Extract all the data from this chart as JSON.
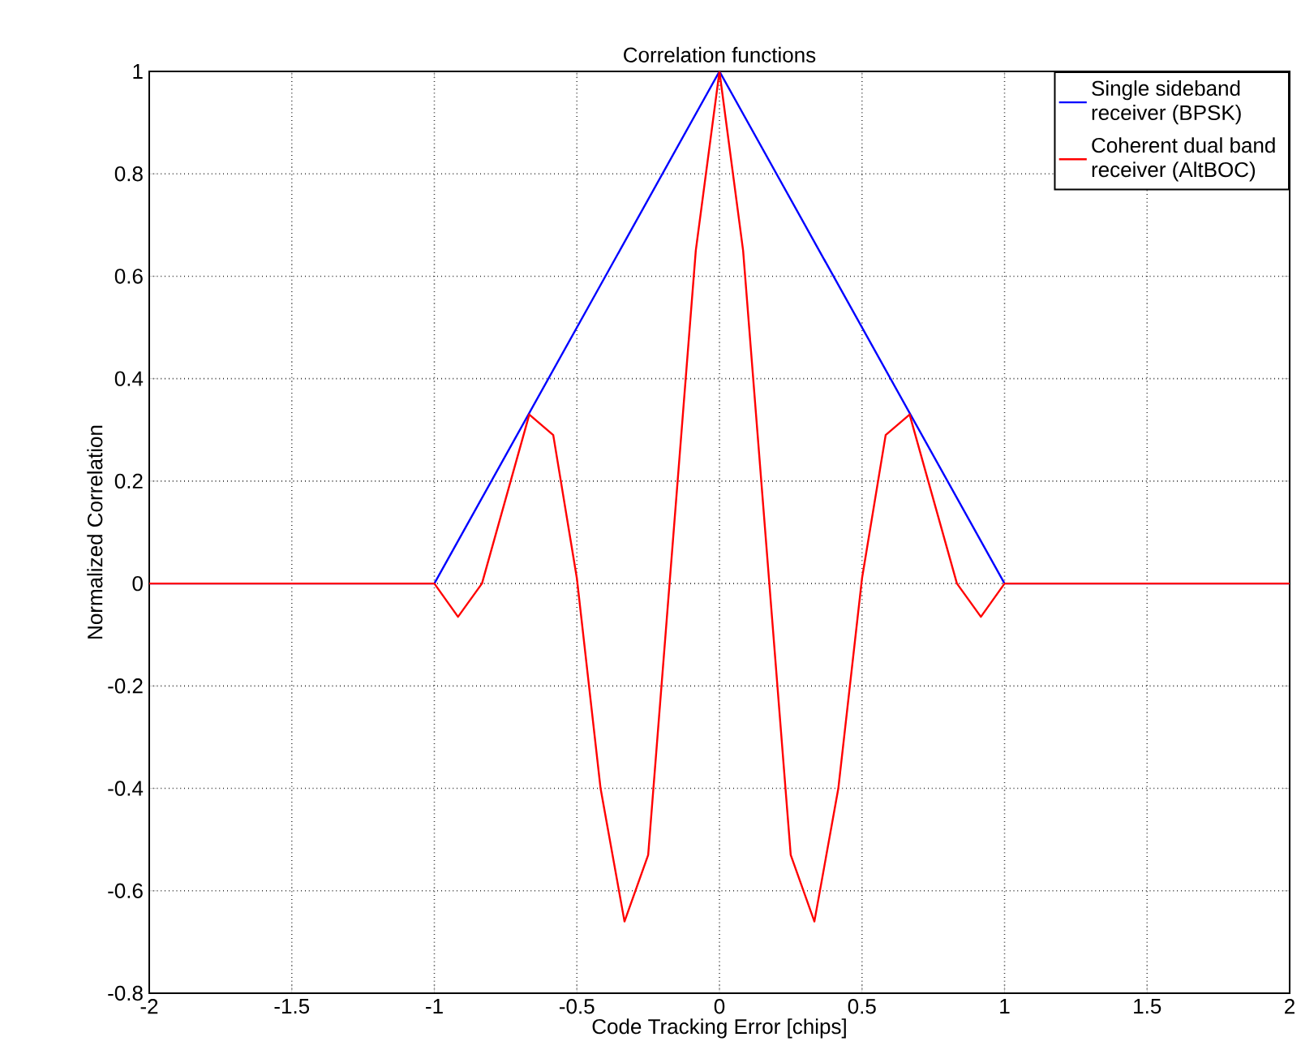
{
  "chart_data": {
    "type": "line",
    "title": "Correlation functions",
    "xlabel": "Code Tracking Error [chips]",
    "ylabel": "Normalized Correlation",
    "xlim": [
      -2,
      2
    ],
    "ylim": [
      -0.8,
      1
    ],
    "xticks": [
      -2,
      -1.5,
      -1,
      -0.5,
      0,
      0.5,
      1,
      1.5,
      2
    ],
    "yticks": [
      -0.8,
      -0.6,
      -0.4,
      -0.2,
      0,
      0.2,
      0.4,
      0.6,
      0.8,
      1
    ],
    "grid": true,
    "legend": "top right",
    "line_style": "solid",
    "series": [
      {
        "name": "Single sideband receiver (BPSK)",
        "color": "#0000ff",
        "x": [
          -2,
          -1,
          0,
          1,
          2
        ],
        "values": [
          0,
          0,
          1,
          0,
          0
        ]
      },
      {
        "name": "Coherent dual band receiver (AltBOC)",
        "color": "#ff0000",
        "x": [
          -2,
          -1.5,
          -1,
          -0.917,
          -0.833,
          -0.667,
          -0.583,
          -0.5,
          -0.417,
          -0.333,
          -0.25,
          -0.083,
          0,
          0.083,
          0.25,
          0.333,
          0.417,
          0.5,
          0.583,
          0.667,
          0.833,
          0.917,
          1,
          1.5,
          2
        ],
        "values": [
          0,
          0,
          0,
          -0.065,
          0,
          0.33,
          0.29,
          0.01,
          -0.4,
          -0.66,
          -0.53,
          0.65,
          1,
          0.65,
          -0.53,
          -0.66,
          -0.4,
          0.01,
          0.29,
          0.33,
          0,
          -0.065,
          0,
          0,
          0
        ]
      }
    ]
  }
}
